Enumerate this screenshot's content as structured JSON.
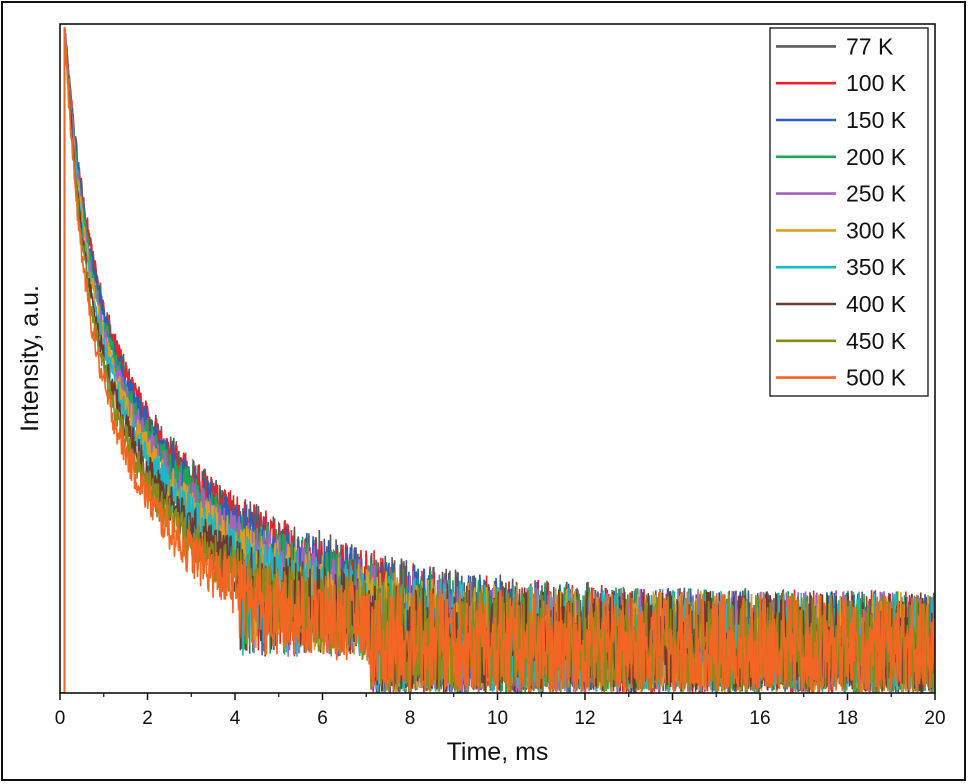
{
  "chart_data": {
    "type": "line",
    "title": "",
    "xlabel": "Time, ms",
    "ylabel": "Intensity, a.u.",
    "xlim": [
      0,
      20
    ],
    "ylim": [
      0,
      1
    ],
    "x_ticks": [
      0,
      2,
      4,
      6,
      8,
      10,
      12,
      14,
      16,
      18,
      20
    ],
    "y_tick_labels": false,
    "grid": false,
    "legend_position": "top-right",
    "pulse_time_ms": 0.1,
    "series": [
      {
        "name": "77 K",
        "color": "#5a5a5a",
        "tau1_ms": 0.55,
        "tau2_ms": 3.3,
        "noise_floor": 0.09
      },
      {
        "name": "100 K",
        "color": "#e8242a",
        "tau1_ms": 0.55,
        "tau2_ms": 3.25,
        "noise_floor": 0.09
      },
      {
        "name": "150 K",
        "color": "#2860b8",
        "tau1_ms": 0.52,
        "tau2_ms": 3.1,
        "noise_floor": 0.09
      },
      {
        "name": "200 K",
        "color": "#1ea556",
        "tau1_ms": 0.5,
        "tau2_ms": 2.95,
        "noise_floor": 0.09
      },
      {
        "name": "250 K",
        "color": "#a463c0",
        "tau1_ms": 0.48,
        "tau2_ms": 2.8,
        "noise_floor": 0.09
      },
      {
        "name": "300 K",
        "color": "#d6a020",
        "tau1_ms": 0.46,
        "tau2_ms": 2.65,
        "noise_floor": 0.09
      },
      {
        "name": "350 K",
        "color": "#1fb6c6",
        "tau1_ms": 0.44,
        "tau2_ms": 2.5,
        "noise_floor": 0.09
      },
      {
        "name": "400 K",
        "color": "#6b3b32",
        "tau1_ms": 0.42,
        "tau2_ms": 2.3,
        "noise_floor": 0.09
      },
      {
        "name": "450 K",
        "color": "#8a8a1c",
        "tau1_ms": 0.4,
        "tau2_ms": 2.1,
        "noise_floor": 0.09
      },
      {
        "name": "500 K",
        "color": "#f26522",
        "tau1_ms": 0.37,
        "tau2_ms": 1.9,
        "noise_floor": 0.09
      }
    ]
  }
}
